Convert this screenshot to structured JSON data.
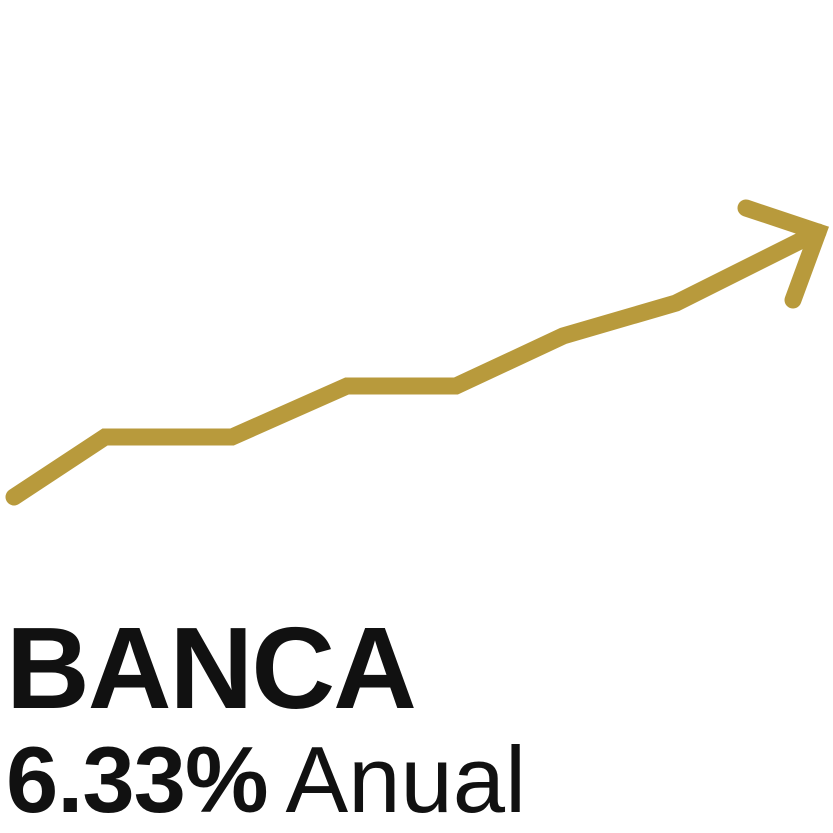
{
  "sector": {
    "title": "BANCA",
    "rate": "6.33%",
    "period": "Anual"
  },
  "graphic": {
    "icon": "upward-trend-arrow-icon",
    "color": "#b89a3c"
  }
}
